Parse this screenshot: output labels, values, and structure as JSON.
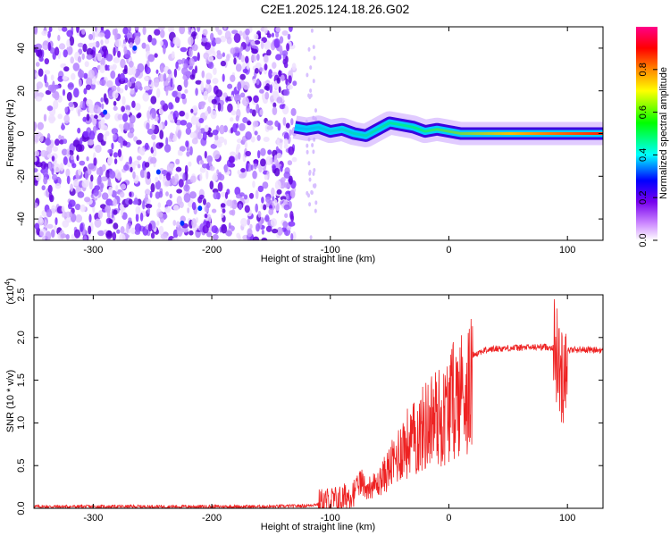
{
  "title": "C2E1.2025.124.18.26.G02",
  "chart_data": [
    {
      "type": "heatmap",
      "title": "C2E1.2025.124.18.26.G02",
      "xlabel": "Height of straight line (km)",
      "ylabel": "Frequency (Hz)",
      "xlim": [
        -350,
        130
      ],
      "ylim": [
        -50,
        50
      ],
      "x_ticks": [
        -300,
        -200,
        -100,
        0,
        100
      ],
      "y_ticks": [
        -40,
        -20,
        0,
        20,
        40
      ],
      "colorbar": {
        "label": "Normalized spectral amplitude",
        "range": [
          0,
          1
        ],
        "ticks": [
          "0.0",
          "0.2",
          "0.4",
          "0.6",
          "0.8"
        ],
        "colormap": [
          "#ffffff",
          "#cc88ff",
          "#7700ee",
          "#0000ff",
          "#00ffff",
          "#00ff00",
          "#ffff00",
          "#ff8800",
          "#ff0000",
          "#ff0088"
        ]
      },
      "noise_region": {
        "x_range": [
          -350,
          -130
        ],
        "freq_range": [
          -50,
          50
        ]
      },
      "spectral_ridge": {
        "x": [
          -130,
          -120,
          -110,
          -100,
          -90,
          -80,
          -70,
          -60,
          -50,
          -40,
          -30,
          -20,
          -10,
          0,
          10,
          20,
          40,
          60,
          80,
          100,
          130
        ],
        "freq": [
          3,
          2,
          3,
          1,
          2,
          0,
          -1,
          2,
          5,
          4,
          3,
          1,
          2,
          1,
          0,
          0,
          0,
          0,
          0,
          0,
          0
        ]
      }
    },
    {
      "type": "line",
      "xlabel": "Height of straight line (km)",
      "ylabel": "SNR (10 * v/v)",
      "y_scale_label": "(x10^4)",
      "xlim": [
        -350,
        130
      ],
      "ylim": [
        0,
        2.5
      ],
      "x_ticks": [
        -300,
        -200,
        -100,
        0,
        100
      ],
      "y_ticks": [
        "0.0",
        "0.5",
        "1.0",
        "1.5",
        "2.0",
        "2.5"
      ],
      "series": [
        {
          "color": "#ee2222",
          "x": [
            -350,
            -300,
            -250,
            -200,
            -150,
            -120,
            -110,
            -100,
            -90,
            -80,
            -75,
            -70,
            -60,
            -50,
            -45,
            -40,
            -30,
            -20,
            -15,
            -10,
            -5,
            0,
            10,
            20,
            30,
            40,
            60,
            80,
            90,
            95,
            100,
            110,
            130
          ],
          "y": [
            0.02,
            0.02,
            0.02,
            0.02,
            0.02,
            0.03,
            0.05,
            0.08,
            0.1,
            0.2,
            0.4,
            0.3,
            0.35,
            0.6,
            0.7,
            0.9,
            1.0,
            1.2,
            1.3,
            1.35,
            1.3,
            1.5,
            1.7,
            1.8,
            1.85,
            1.87,
            1.88,
            1.89,
            1.88,
            1.5,
            1.85,
            1.86,
            1.85
          ]
        }
      ]
    }
  ]
}
